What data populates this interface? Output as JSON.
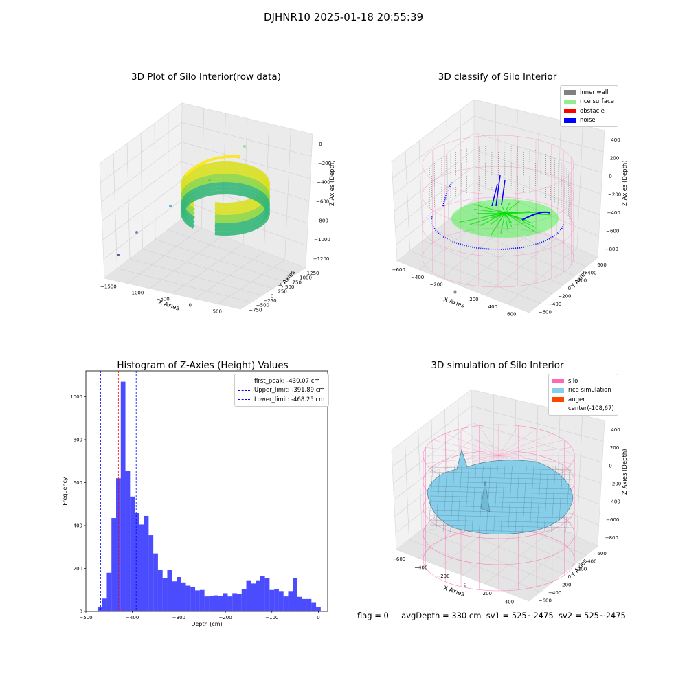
{
  "suptitle": "DJHNR10 2025-01-18 20:55:39",
  "panels": {
    "raw": {
      "title": "3D Plot of Silo Interior(row data)",
      "xlabel": "X Axies",
      "ylabel": "Y Axies",
      "zlabel": "Z Axies (Depth)",
      "xticks": [
        "−1500",
        "−1000",
        "−500",
        "0",
        "500"
      ],
      "yticks": [
        "−750",
        "−500",
        "−250",
        "0",
        "250",
        "500",
        "750",
        "1000",
        "1250"
      ],
      "zticks": [
        "−1200",
        "−1000",
        "−800",
        "−600",
        "−400",
        "−200",
        "0"
      ]
    },
    "classify": {
      "title": "3D classify of Silo Interior",
      "xlabel": "X Axies",
      "ylabel": "Y Axies",
      "zlabel": "Z Axies (Depth)",
      "xticks": [
        "−600",
        "−400",
        "−200",
        "0",
        "200",
        "400",
        "600"
      ],
      "yticks": [
        "−600",
        "−400",
        "−200",
        "0",
        "200",
        "400",
        "600"
      ],
      "zticks": [
        "−800",
        "−600",
        "−400",
        "−200",
        "0",
        "200",
        "400"
      ],
      "legend": [
        {
          "label": "inner wall",
          "color": "#808080"
        },
        {
          "label": "rice surface",
          "color": "#90ee90"
        },
        {
          "label": "obstacle",
          "color": "#ff0000"
        },
        {
          "label": "noise",
          "color": "#0000ff"
        }
      ]
    },
    "simulation": {
      "title": "3D simulation of Silo Interior",
      "xlabel": "X Axies",
      "ylabel": "Y Axies",
      "zlabel": "Z Axies (Depth)",
      "xticks": [
        "−600",
        "−400",
        "−200",
        "0",
        "200",
        "400"
      ],
      "yticks": [
        "−600",
        "−400",
        "−200",
        "0",
        "200",
        "400",
        "600"
      ],
      "zticks": [
        "−800",
        "−600",
        "−400",
        "−200",
        "0",
        "200",
        "400"
      ],
      "legend": [
        {
          "label": "silo",
          "color": "#ff69b4"
        },
        {
          "label": "rice simulation",
          "color": "#87ceeb"
        },
        {
          "label": "auger",
          "color": "#ff4500"
        },
        {
          "label": "center(-108,67)",
          "color": "none"
        }
      ]
    }
  },
  "chart_data": {
    "type": "bar",
    "title": "Histogram of Z-Axies (Height) Values",
    "xlabel": "Depth (cm)",
    "ylabel": "Frequency",
    "xlim": [
      -500,
      20
    ],
    "ylim": [
      0,
      1120
    ],
    "xticks": [
      -500,
      -400,
      -300,
      -200,
      -100,
      0
    ],
    "yticks": [
      0,
      200,
      400,
      600,
      800,
      1000
    ],
    "bin_start": -475,
    "bin_width": 10,
    "values": [
      20,
      60,
      180,
      435,
      620,
      1070,
      655,
      535,
      460,
      405,
      445,
      355,
      270,
      195,
      155,
      195,
      140,
      160,
      135,
      120,
      115,
      98,
      100,
      70,
      72,
      75,
      72,
      85,
      70,
      85,
      82,
      105,
      145,
      130,
      145,
      165,
      155,
      100,
      105,
      95,
      70,
      95,
      155,
      68,
      58,
      58,
      40,
      20
    ],
    "bar_color": "#0000ff",
    "lines": [
      {
        "label": "first_peak: -430.07 cm",
        "x": -430.07,
        "color": "#ff0000"
      },
      {
        "label": "Upper_limit: -391.89 cm",
        "x": -391.89,
        "color": "#0000ff"
      },
      {
        "label": "Lower_limit: -468.25 cm",
        "x": -468.25,
        "color": "#0000ff"
      }
    ],
    "legend_position": "top-right"
  },
  "stats": {
    "flag": "flag = 0",
    "avg": "avgDepth = 330 cm",
    "sv1": "sv1 = 525~2475",
    "sv2": "sv2 = 525~2475"
  }
}
